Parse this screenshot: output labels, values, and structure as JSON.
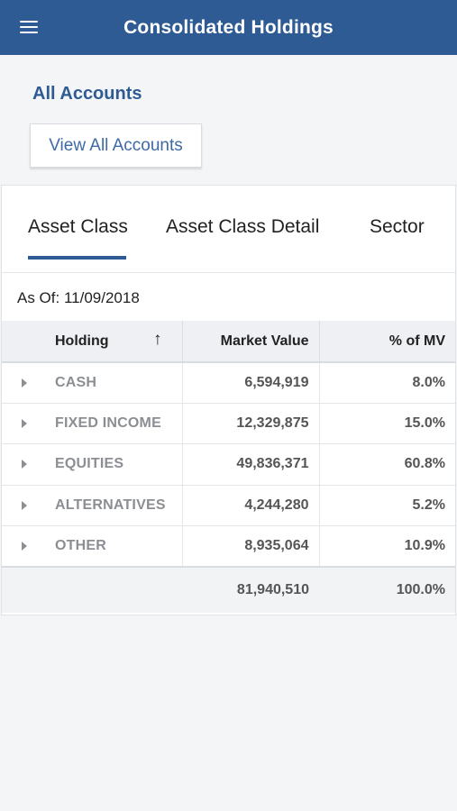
{
  "header": {
    "title": "Consolidated Holdings",
    "menu_icon": "hamburger-icon"
  },
  "accounts": {
    "heading": "All Accounts",
    "view_all_label": "View All Accounts"
  },
  "tabs": [
    {
      "label": "Asset Class",
      "active": true
    },
    {
      "label": "Asset Class Detail",
      "active": false
    },
    {
      "label": "Sector",
      "active": false
    }
  ],
  "as_of": "As Of: 11/09/2018",
  "table": {
    "columns": {
      "holding": "Holding",
      "sort_glyph": "↑",
      "market_value": "Market Value",
      "pct_mv": "% of MV"
    },
    "rows": [
      {
        "holding": "CASH",
        "market_value": "6,594,919",
        "pct": "8.0%"
      },
      {
        "holding": "FIXED INCOME",
        "market_value": "12,329,875",
        "pct": "15.0%"
      },
      {
        "holding": "EQUITIES",
        "market_value": "49,836,371",
        "pct": "60.8%"
      },
      {
        "holding": "ALTERNATIVES",
        "market_value": "4,244,280",
        "pct": "5.2%"
      },
      {
        "holding": "OTHER",
        "market_value": "8,935,064",
        "pct": "10.9%"
      }
    ],
    "total": {
      "market_value": "81,940,510",
      "pct": "100.0%"
    }
  },
  "colors": {
    "brand": "#2f5b94",
    "link": "#3d6aa6",
    "background": "#f4f5f7"
  }
}
